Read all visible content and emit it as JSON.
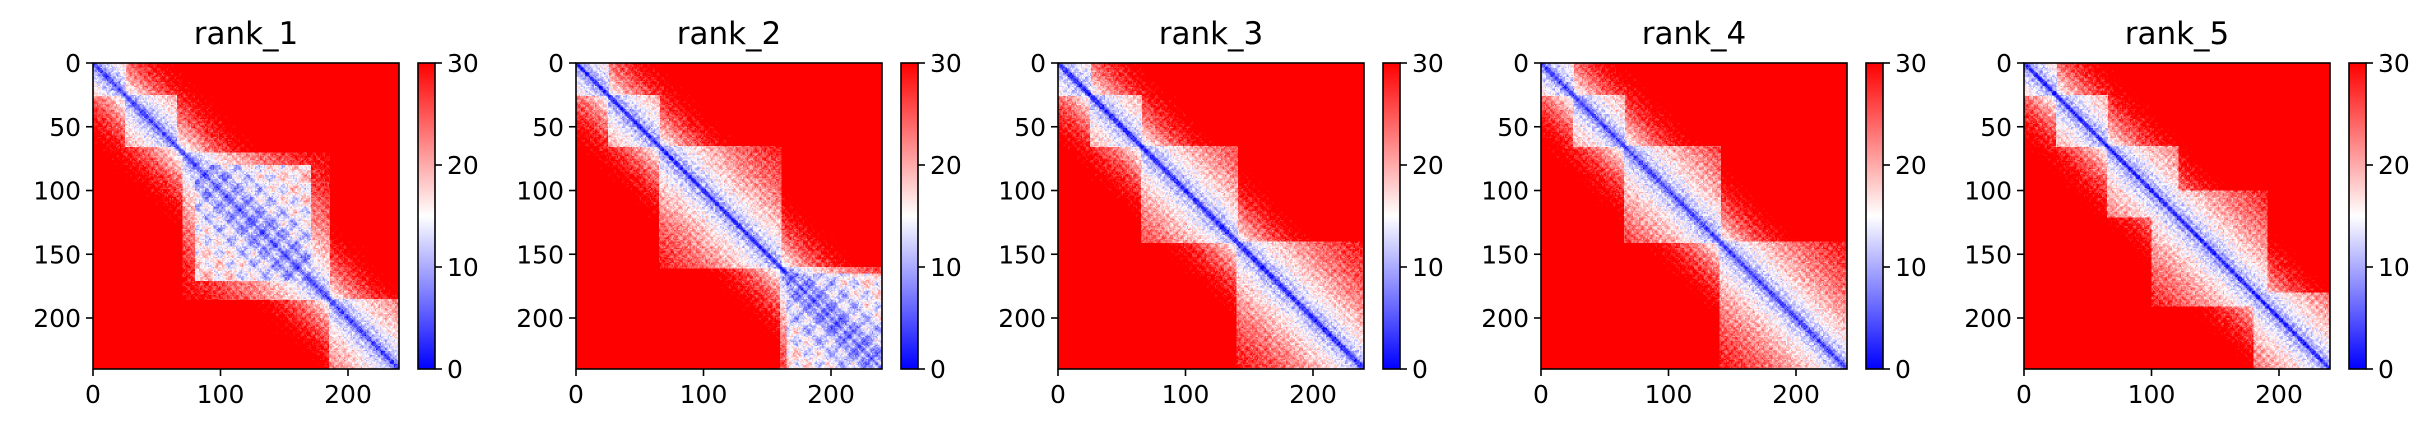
{
  "chart_data": {
    "type": "heatmap",
    "layout": "1x5 panels with individual colorbars",
    "matrix_size": 240,
    "colormap": [
      "#0000ff",
      "#ffffff",
      "#ff0000"
    ],
    "colorbar": {
      "vmin": 0,
      "vmax": 30,
      "ticks": [
        0,
        10,
        20,
        30
      ]
    },
    "x_ticks": [
      0,
      100,
      200
    ],
    "y_ticks": [
      0,
      50,
      100,
      150,
      200
    ],
    "xlim": [
      0,
      240
    ],
    "ylim": [
      240,
      0
    ],
    "panels": [
      {
        "title": "rank_1",
        "domains": [
          [
            0,
            25
          ],
          [
            25,
            65
          ],
          [
            70,
            185
          ],
          [
            185,
            240
          ]
        ],
        "patchy_regions": [
          [
            80,
            170
          ]
        ]
      },
      {
        "title": "rank_2",
        "domains": [
          [
            0,
            25
          ],
          [
            25,
            65
          ],
          [
            65,
            160
          ],
          [
            160,
            240
          ]
        ],
        "patchy_regions": [
          [
            165,
            240
          ]
        ]
      },
      {
        "title": "rank_3",
        "domains": [
          [
            0,
            25
          ],
          [
            25,
            65
          ],
          [
            65,
            140
          ],
          [
            140,
            240
          ]
        ],
        "patchy_regions": []
      },
      {
        "title": "rank_4",
        "domains": [
          [
            0,
            25
          ],
          [
            25,
            65
          ],
          [
            65,
            140
          ],
          [
            140,
            240
          ]
        ],
        "patchy_regions": []
      },
      {
        "title": "rank_5",
        "domains": [
          [
            0,
            25
          ],
          [
            25,
            65
          ],
          [
            65,
            120
          ],
          [
            100,
            190
          ],
          [
            180,
            240
          ]
        ],
        "patchy_regions": []
      }
    ]
  }
}
